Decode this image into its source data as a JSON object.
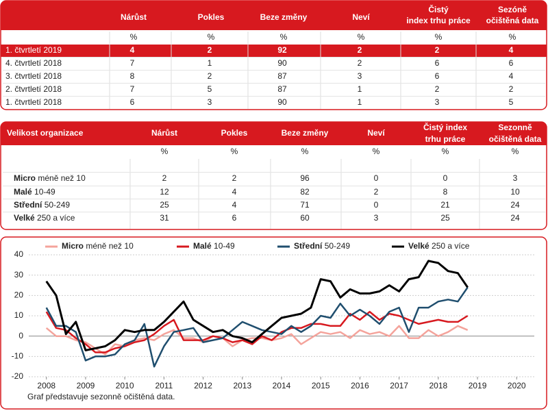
{
  "tables": [
    {
      "columns": [
        [
          "Nárůst"
        ],
        [
          "Pokles"
        ],
        [
          "Beze změny"
        ],
        [
          "Neví"
        ],
        [
          "Čistý",
          "index trhu práce"
        ],
        [
          "Sezóně",
          "očištěná data"
        ]
      ],
      "units": [
        "%",
        "%",
        "%",
        "%",
        "%",
        "%"
      ],
      "rows": [
        {
          "label": "1. čtvrtletí 2019",
          "values": [
            4,
            2,
            92,
            2,
            2,
            4
          ]
        },
        {
          "label": "4. čtvrtletí 2018",
          "values": [
            7,
            1,
            90,
            2,
            6,
            6
          ]
        },
        {
          "label": "3. čtvrtletí 2018",
          "values": [
            8,
            2,
            87,
            3,
            6,
            4
          ]
        },
        {
          "label": "2. čtvrtletí 2018",
          "values": [
            7,
            5,
            87,
            1,
            2,
            2
          ]
        },
        {
          "label": "1. čtvrtletí 2018",
          "values": [
            6,
            3,
            90,
            1,
            3,
            5
          ]
        }
      ]
    },
    {
      "header": "Velikost organizace",
      "columns": [
        [
          "Nárůst"
        ],
        [
          "Pokles"
        ],
        [
          "Beze změny"
        ],
        [
          "Neví"
        ],
        [
          "Čistý index",
          "trhu práce"
        ],
        [
          "Sezonně",
          "očištěná data"
        ]
      ],
      "units": [
        "%",
        "%",
        "%",
        "%",
        "%",
        "%"
      ],
      "rows": [
        {
          "label": "Micro",
          "size": "méně než 10",
          "values": [
            2,
            2,
            96,
            0,
            0,
            3
          ]
        },
        {
          "label": "Malé",
          "size": "10-49",
          "values": [
            12,
            4,
            82,
            2,
            8,
            10
          ]
        },
        {
          "label": "Střední",
          "size": "50-249",
          "values": [
            25,
            4,
            71,
            0,
            21,
            24
          ]
        },
        {
          "label": "Velké",
          "size": "250 a více",
          "values": [
            31,
            6,
            60,
            3,
            25,
            24
          ]
        }
      ]
    }
  ],
  "chart_data": {
    "type": "line",
    "x": [
      2008,
      2008.25,
      2008.5,
      2008.75,
      2009,
      2009.25,
      2009.5,
      2009.75,
      2010,
      2010.25,
      2010.5,
      2010.75,
      2011,
      2011.25,
      2011.5,
      2011.75,
      2012,
      2012.25,
      2012.5,
      2012.75,
      2013,
      2013.25,
      2013.5,
      2013.75,
      2014,
      2014.25,
      2014.5,
      2014.75,
      2015,
      2015.25,
      2015.5,
      2015.75,
      2016,
      2016.25,
      2016.5,
      2016.75,
      2017,
      2017.25,
      2017.5,
      2017.75,
      2018,
      2018.25,
      2018.5,
      2018.75
    ],
    "series": [
      {
        "name": "Micro",
        "size": "méně než 10",
        "color": "#f4a39b",
        "values": [
          4,
          0,
          0,
          -2,
          -3,
          -6,
          -9,
          -4,
          -5,
          -2,
          -1,
          -2,
          1,
          3,
          -1,
          -1,
          -3,
          0,
          -1,
          -5,
          -2,
          -1,
          -1,
          -2,
          -1,
          1,
          -4,
          -1,
          2,
          1,
          2,
          -1,
          3,
          1,
          2,
          0,
          5,
          -1,
          -1,
          3,
          0,
          2,
          5,
          3
        ]
      },
      {
        "name": "Malé",
        "size": "10-49",
        "color": "#d7191f",
        "values": [
          12,
          4,
          3,
          -1,
          -4,
          -8,
          -8,
          -6,
          -5,
          -3,
          -2,
          1,
          5,
          8,
          -2,
          -2,
          -2,
          0,
          -1,
          -3,
          -2,
          -4,
          0,
          -2,
          2,
          4,
          4,
          6,
          6,
          5,
          5,
          11,
          8,
          12,
          8,
          11,
          10,
          8,
          6,
          7,
          8,
          7,
          7,
          10
        ]
      },
      {
        "name": "Střední",
        "size": "50-249",
        "color": "#1f4e6e",
        "values": [
          14,
          5,
          5,
          2,
          -12,
          -10,
          -10,
          -9,
          -4,
          -2,
          6,
          -15,
          -5,
          2,
          3,
          4,
          -3,
          -2,
          -1,
          3,
          7,
          5,
          3,
          2,
          1,
          5,
          2,
          5,
          10,
          9,
          16,
          10,
          13,
          10,
          6,
          12,
          14,
          2,
          14,
          14,
          17,
          18,
          17,
          24
        ]
      },
      {
        "name": "Velké",
        "size": "250 a více",
        "color": "#000000",
        "values": [
          27,
          20,
          1,
          7,
          -7,
          -6,
          -5,
          -2,
          3,
          2,
          3,
          3,
          7,
          12,
          17,
          8,
          5,
          2,
          3,
          0,
          -1,
          -3,
          1,
          5,
          9,
          10,
          11,
          14,
          28,
          27,
          19,
          23,
          21,
          21,
          22,
          25,
          22,
          28,
          29,
          37,
          36,
          32,
          31,
          24
        ]
      }
    ],
    "xlim": [
      2007.55,
      2020.45
    ],
    "xticks": [
      2008,
      2009,
      2010,
      2011,
      2012,
      2013,
      2014,
      2015,
      2016,
      2017,
      2018,
      2019,
      2020
    ],
    "ylim": [
      -20,
      40
    ],
    "yticks": [
      -20,
      -10,
      0,
      10,
      20,
      30,
      40
    ],
    "grid": true,
    "note": "Graf představuje sezonně očištěná data."
  }
}
